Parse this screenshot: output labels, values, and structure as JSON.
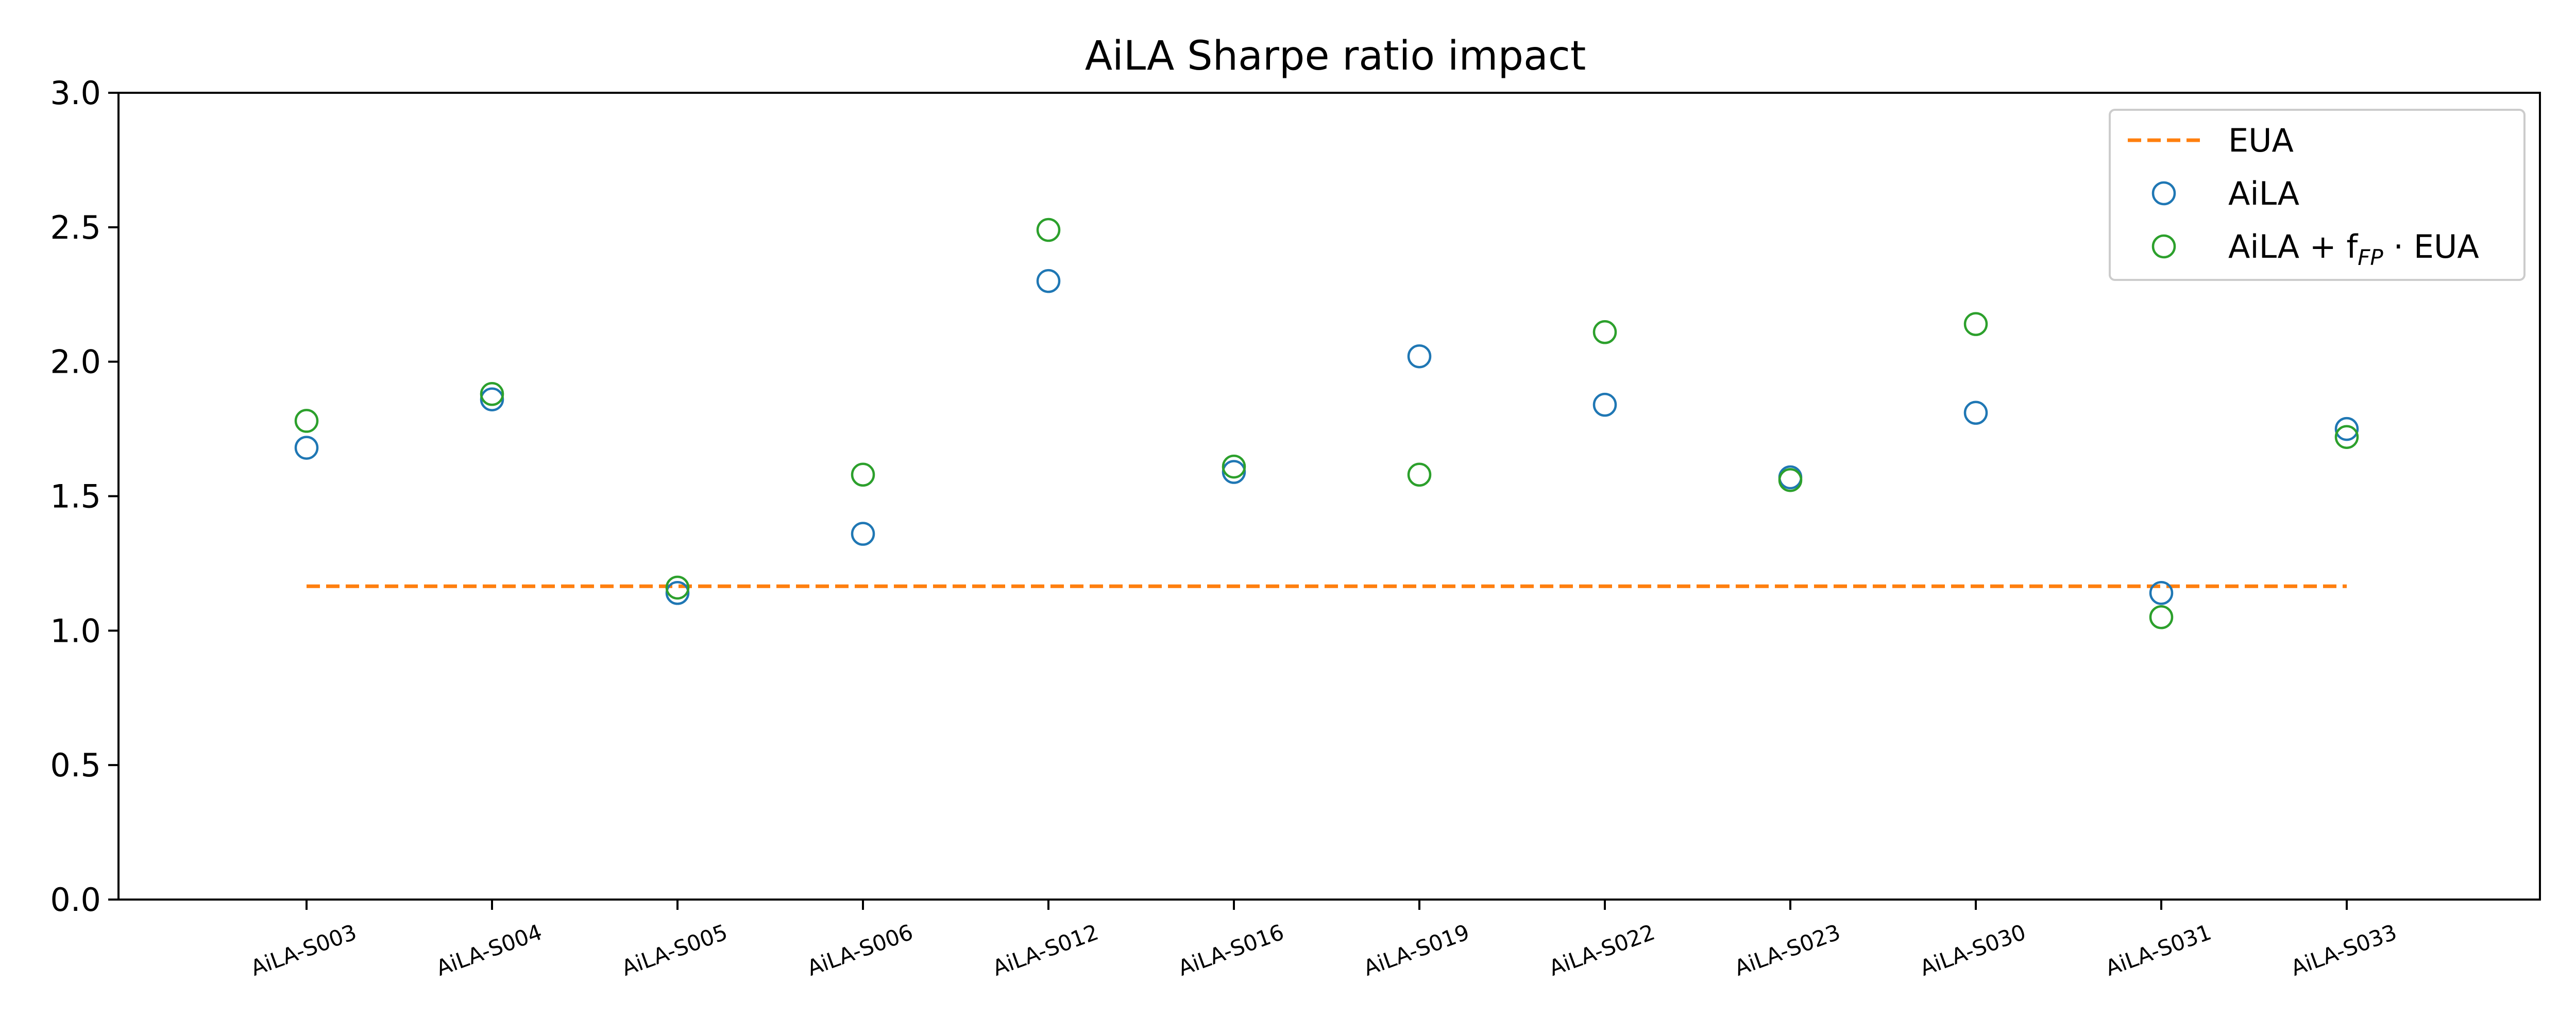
{
  "chart_data": {
    "type": "scatter",
    "title": "AiLA Sharpe ratio impact",
    "xlabel": "",
    "ylabel": "",
    "categories": [
      "AiLA-S003",
      "AiLA-S004",
      "AiLA-S005",
      "AiLA-S006",
      "AiLA-S012",
      "AiLA-S016",
      "AiLA-S019",
      "AiLA-S022",
      "AiLA-S023",
      "AiLA-S030",
      "AiLA-S031",
      "AiLA-S033"
    ],
    "ylim": [
      0,
      3.0
    ],
    "yticks": [
      "0.0",
      "0.5",
      "1.0",
      "1.5",
      "2.0",
      "2.5",
      "3.0"
    ],
    "grid": false,
    "legend_position": "top-right",
    "series": [
      {
        "name": "EUA",
        "kind": "dashed-line",
        "color": "#ff7f0e",
        "values": [
          1.165,
          1.165,
          1.165,
          1.165,
          1.165,
          1.165,
          1.165,
          1.165,
          1.165,
          1.165,
          1.165,
          1.165
        ]
      },
      {
        "name": "AiLA",
        "kind": "open-circle",
        "color": "#1f77b4",
        "values": [
          1.68,
          1.86,
          1.14,
          1.36,
          2.3,
          1.59,
          2.02,
          1.84,
          1.57,
          1.81,
          1.14,
          1.75
        ]
      },
      {
        "name": "AiLA + f",
        "name_subscript": "FP",
        "name_suffix": "· EUA",
        "kind": "open-circle",
        "color": "#2ca02c",
        "values": [
          1.78,
          1.88,
          1.16,
          1.58,
          2.49,
          1.61,
          1.58,
          2.11,
          1.56,
          2.14,
          1.05,
          1.72
        ]
      }
    ]
  }
}
